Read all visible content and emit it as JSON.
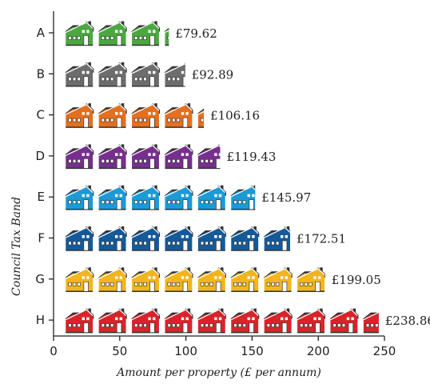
{
  "chart_data": {
    "type": "bar",
    "orientation": "horizontal",
    "style": "pictogram",
    "icon": "house-icon",
    "unit_per_icon": 25,
    "xlabel": "Amount per property (£ per annum)",
    "ylabel": "Council Tax Band",
    "xlim": [
      0,
      250
    ],
    "xticks": [
      "0",
      "50",
      "100",
      "150",
      "200",
      "250"
    ],
    "categories": [
      "A",
      "B",
      "C",
      "D",
      "E",
      "F",
      "G",
      "H"
    ],
    "values": [
      79.62,
      92.89,
      106.16,
      119.43,
      145.97,
      172.51,
      199.05,
      238.86
    ],
    "value_labels": [
      "£79.62",
      "£92.89",
      "£106.16",
      "£119.43",
      "£145.97",
      "£172.51",
      "£199.05",
      "£238.86"
    ],
    "colors": [
      "#4aa83f",
      "#6d6d6d",
      "#e46f1f",
      "#772f8e",
      "#1b9ad6",
      "#145a9a",
      "#f2b51b",
      "#d9232a"
    ],
    "grid": false,
    "legend": "none"
  }
}
